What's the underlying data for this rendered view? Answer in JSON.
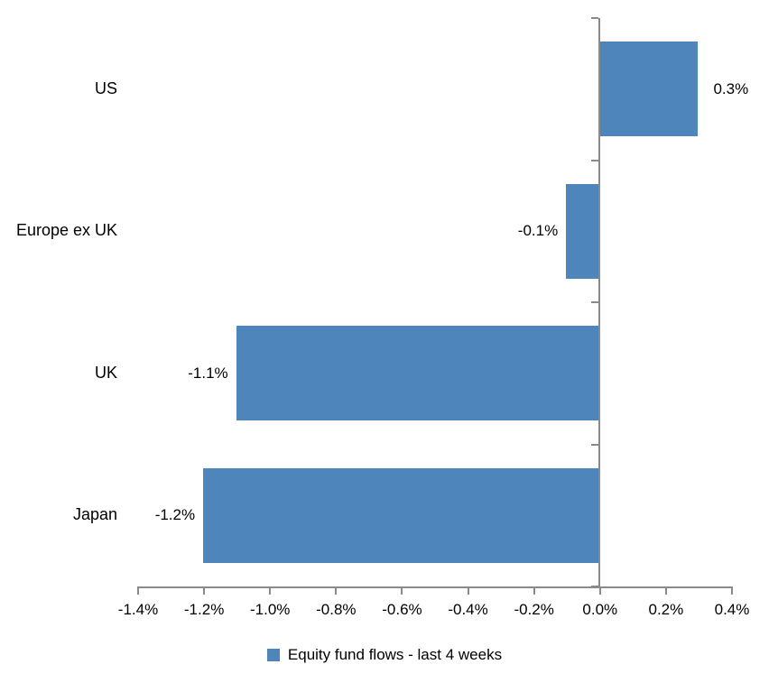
{
  "chart_data": {
    "type": "bar",
    "orientation": "horizontal",
    "title": "",
    "xlabel": "",
    "ylabel": "",
    "categories": [
      "US",
      "Europe ex UK",
      "UK",
      "Japan"
    ],
    "values": [
      0.3,
      -0.1,
      -1.1,
      -1.2
    ],
    "data_labels": [
      "0.3%",
      "-0.1%",
      "-1.1%",
      "-1.2%"
    ],
    "series_name": "Equity fund flows - last 4 weeks",
    "xlim": [
      -1.4,
      0.4
    ],
    "x_tick_step": 0.2,
    "x_tick_labels": [
      "-1.4%",
      "-1.2%",
      "-1.0%",
      "-0.8%",
      "-0.6%",
      "-0.4%",
      "-0.2%",
      "0.0%",
      "0.2%",
      "0.4%"
    ],
    "grid": false,
    "legend_position": "bottom",
    "bar_color": "#4e86bc",
    "axis_color": "#8a8a8a",
    "text_color": "#000000"
  }
}
